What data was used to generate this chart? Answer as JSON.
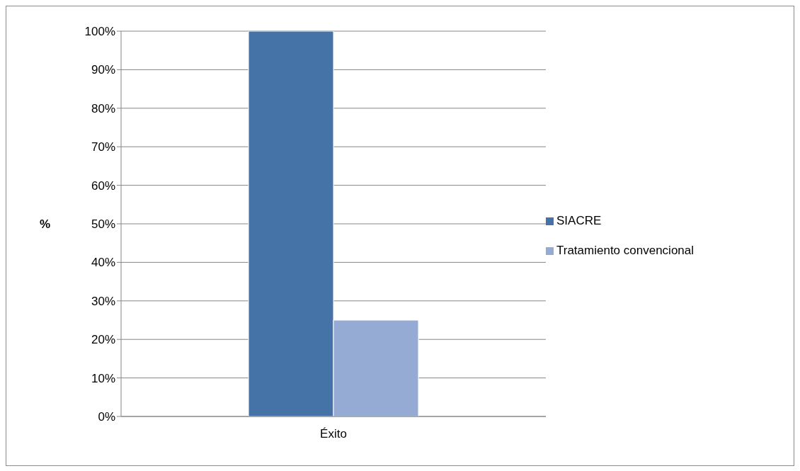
{
  "chart_data": {
    "type": "bar",
    "ylabel": "%",
    "categories": [
      "Éxito"
    ],
    "series": [
      {
        "name": "SIACRE",
        "color": "#4573a7",
        "values": [
          100
        ]
      },
      {
        "name": "Tratamiento convencional",
        "color": "#95abd3",
        "values": [
          25
        ]
      }
    ],
    "ylim": [
      0,
      100
    ],
    "yticks": [
      {
        "value": 0,
        "label": "0%"
      },
      {
        "value": 10,
        "label": "10%"
      },
      {
        "value": 20,
        "label": "20%"
      },
      {
        "value": 30,
        "label": "30%"
      },
      {
        "value": 40,
        "label": "40%"
      },
      {
        "value": 50,
        "label": "50%"
      },
      {
        "value": 60,
        "label": "60%"
      },
      {
        "value": 70,
        "label": "70%"
      },
      {
        "value": 80,
        "label": "80%"
      },
      {
        "value": 90,
        "label": "90%"
      },
      {
        "value": 100,
        "label": "100%"
      }
    ],
    "grid": "y",
    "legend": "right"
  }
}
